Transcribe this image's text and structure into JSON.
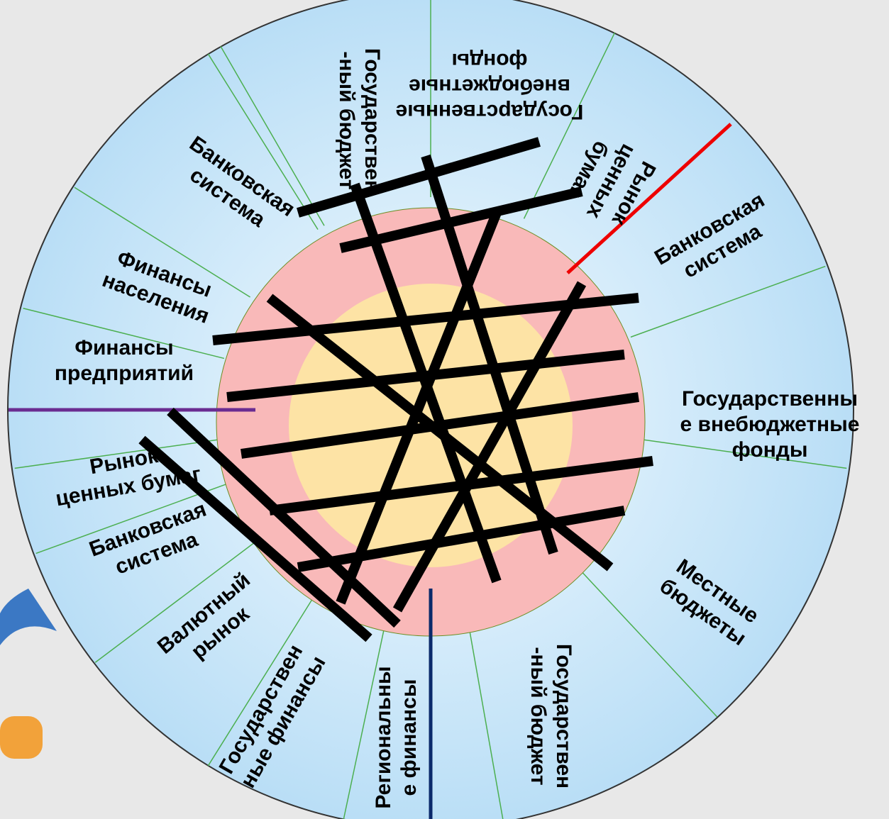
{
  "wheel": {
    "sectors": [
      {
        "lines": [
          "Государствен",
          "-ный бюджет"
        ]
      },
      {
        "lines": [
          "Государственные",
          "внебюджетные",
          "фонды"
        ]
      },
      {
        "lines": [
          "Рынок",
          "ценных",
          "бумаг"
        ]
      },
      {
        "lines": [
          "Банковская",
          "система"
        ]
      },
      {
        "lines": [
          "Государственны",
          "е внебюджетные",
          "фонды"
        ]
      },
      {
        "lines": [
          "Местные",
          "бюджеты"
        ]
      },
      {
        "lines": [
          "Государствен",
          "-ный бюджет"
        ]
      },
      {
        "lines": [
          "Региональны",
          "е финансы"
        ]
      },
      {
        "lines": [
          "Государствен",
          "ные финансы"
        ]
      },
      {
        "lines": [
          "Валютный",
          "рынок"
        ]
      },
      {
        "lines": [
          "Банковская",
          "система"
        ]
      },
      {
        "lines": [
          "Рынок",
          "ценных бумаг"
        ]
      },
      {
        "lines": [
          "Финансы",
          "предприятий"
        ]
      },
      {
        "lines": [
          "Финансы",
          "населения"
        ]
      },
      {
        "lines": [
          "Банковская",
          "система"
        ]
      }
    ]
  }
}
